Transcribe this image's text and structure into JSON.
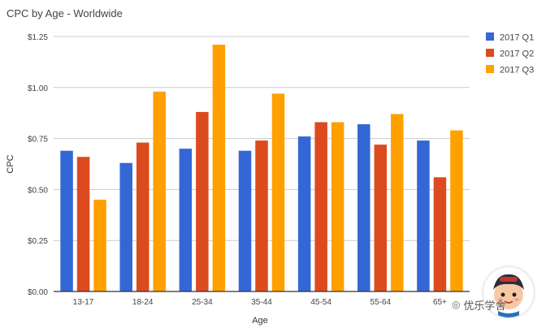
{
  "chart_data": {
    "type": "bar",
    "title": "CPC by Age - Worldwide",
    "xlabel": "Age",
    "ylabel": "CPC",
    "categories": [
      "13-17",
      "18-24",
      "25-34",
      "35-44",
      "45-54",
      "55-64",
      "65+"
    ],
    "series": [
      {
        "name": "2017 Q1",
        "color": "#3367d6",
        "values": [
          0.69,
          0.63,
          0.7,
          0.69,
          0.76,
          0.82,
          0.74
        ]
      },
      {
        "name": "2017 Q2",
        "color": "#dc4b1e",
        "values": [
          0.66,
          0.73,
          0.88,
          0.74,
          0.83,
          0.72,
          0.56
        ]
      },
      {
        "name": "2017 Q3",
        "color": "#ffa000",
        "values": [
          0.45,
          0.98,
          1.21,
          0.97,
          0.83,
          0.87,
          0.79
        ]
      }
    ],
    "ylim": [
      0,
      1.25
    ],
    "yticks": [
      0,
      0.25,
      0.5,
      0.75,
      1.0,
      1.25
    ],
    "ytick_labels": [
      "$0.00",
      "$0.25",
      "$0.50",
      "$0.75",
      "$1.00",
      "$1.25"
    ],
    "grid": true,
    "legend_position": "right"
  },
  "watermark": {
    "text": "优乐学舍",
    "icon": "wechat-icon",
    "avatar": "cartoon-avatar"
  }
}
